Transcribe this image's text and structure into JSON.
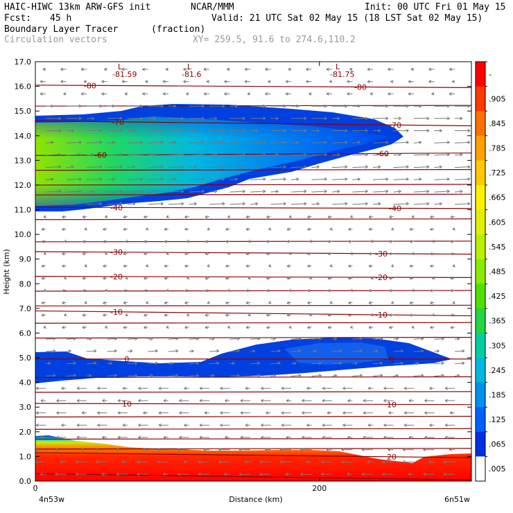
{
  "header": {
    "model": "HAIC-HIWC 13km ARW-GFS init",
    "org": "NCAR/MMM",
    "init": "Init: 00 UTC Fri 01 May 15",
    "fcst_label": "Fcst:",
    "fcst_value": "45 h",
    "valid": "Valid: 21 UTC Sat 02 May 15 (18 LST Sat 02 May 15)",
    "field1": "Boundary Layer Tracer",
    "field1_units": "(fraction)",
    "field2": "Circulation vectors",
    "xy": "XY= 259.5, 91.6 to 274.6,110.2"
  },
  "chart_data": {
    "type": "heatmap",
    "ylabel": "Height (km)",
    "xlabel": "Distance (km)",
    "xlim": [
      0,
      307
    ],
    "ylim": [
      0,
      17
    ],
    "x_tick_labels": [
      {
        "x": 0,
        "label": "0"
      },
      {
        "x": 200,
        "label": "200"
      }
    ],
    "x_end_labels": {
      "left": "4n53w",
      "right": "6n51w"
    },
    "y_ticks": [
      0.0,
      1.0,
      2.0,
      3.0,
      4.0,
      5.0,
      6.0,
      7.0,
      8.0,
      9.0,
      10.0,
      11.0,
      12.0,
      13.0,
      14.0,
      15.0,
      16.0,
      17.0
    ],
    "y_tick_labels": [
      "0.0",
      "1.0",
      "2.0",
      "3.0",
      "4.0",
      "5.0",
      "6.0",
      "7.0",
      "8.0",
      "9.0",
      "10.0",
      "11.0",
      "12.0",
      "13.0",
      "14.0",
      "15.0",
      "16.0",
      "17.0"
    ],
    "colorbar": {
      "labels": [
        "-",
        ".905",
        ".845",
        ".785",
        ".725",
        ".665",
        ".605",
        ".545",
        ".485",
        ".425",
        ".365",
        ".305",
        ".245",
        ".185",
        ".125",
        ".065",
        ".005"
      ],
      "colors": [
        "#ff0000",
        "#ff3a00",
        "#ff7000",
        "#ffa000",
        "#ffc800",
        "#fff000",
        "#e0f000",
        "#b8f000",
        "#88ec00",
        "#50e000",
        "#20d840",
        "#00d0a0",
        "#00b8e0",
        "#0090f0",
        "#0060ff",
        "#0030e0",
        "#ffffff"
      ]
    },
    "contours": [
      {
        "label": "-80",
        "y": [
          16.05,
          15.95
        ],
        "label_pos": [
          [
            130,
            -80
          ],
          [
            520,
            -80
          ]
        ]
      },
      {
        "label": "-70",
        "y": [
          14.6,
          14.4
        ],
        "label_pos": [
          [
            170,
            -70
          ],
          [
            570,
            -70
          ]
        ]
      },
      {
        "label": "-60",
        "y": [
          13.2,
          13.3
        ],
        "label_pos": [
          [
            145,
            -60
          ],
          [
            552,
            -60
          ]
        ]
      },
      {
        "label": "-40",
        "y": [
          11.1,
          11.05
        ],
        "label_pos": [
          [
            168,
            -40
          ],
          [
            570,
            -40
          ]
        ]
      },
      {
        "label": "-30",
        "y": [
          9.3,
          9.2
        ],
        "label_pos": [
          [
            168,
            -30
          ],
          [
            550,
            -30
          ]
        ]
      },
      {
        "label": "-20",
        "y": [
          8.3,
          8.25
        ],
        "label_pos": [
          [
            168,
            -20
          ],
          [
            550,
            -20
          ]
        ]
      },
      {
        "label": "-10",
        "y": [
          6.9,
          6.7
        ],
        "label_pos": [
          [
            168,
            -10
          ],
          [
            550,
            -10
          ]
        ]
      },
      {
        "label": "0",
        "y": [
          4.95,
          4.95
        ],
        "label_pos": [
          [
            183,
            0
          ],
          [
            565,
            0
          ]
        ]
      },
      {
        "label": "10",
        "y": [
          3.15,
          3.1
        ],
        "label_pos": [
          [
            183,
            10
          ],
          [
            565,
            10
          ]
        ]
      },
      {
        "label": "20",
        "y": [
          1.15,
          0.95
        ],
        "label_pos": [
          [
            565,
            20
          ]
        ]
      }
    ],
    "other_isotherms_y": [
      15.2,
      12.6,
      12.0,
      11.6,
      10.6,
      9.7,
      7.7,
      7.1,
      6.4,
      5.8,
      4.2,
      3.6,
      2.6,
      2.1,
      1.7,
      1.3
    ],
    "min_labels": [
      {
        "mark": "L",
        "value": "-81.59"
      },
      {
        "mark": "L",
        "value": "-81.6"
      },
      {
        "mark": "L",
        "value": "-81.75"
      }
    ]
  }
}
